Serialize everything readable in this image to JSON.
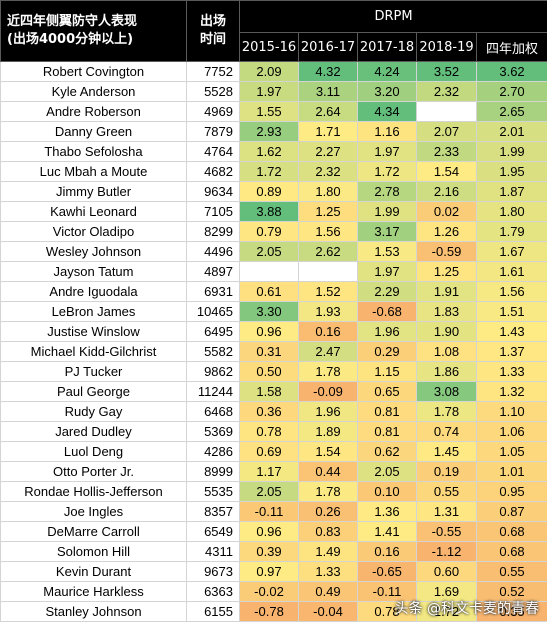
{
  "header": {
    "title_line1": "近四年侧翼防守人表现",
    "title_line2": "(出场4000分钟以上)",
    "minutes_line1": "出场",
    "minutes_line2": "时间",
    "group": "DRPM",
    "columns": [
      "2015-16",
      "2016-17",
      "2017-18",
      "2018-19",
      "四年加权"
    ]
  },
  "rows": [
    {
      "name": "Robert Covington",
      "minutes": "7752",
      "vals": [
        "2.09",
        "4.32",
        "4.24",
        "3.52",
        "3.62"
      ]
    },
    {
      "name": "Kyle Anderson",
      "minutes": "5528",
      "vals": [
        "1.97",
        "3.11",
        "3.20",
        "2.32",
        "2.70"
      ]
    },
    {
      "name": "Andre Roberson",
      "minutes": "4969",
      "vals": [
        "1.55",
        "2.64",
        "4.34",
        "",
        "2.65"
      ]
    },
    {
      "name": "Danny Green",
      "minutes": "7879",
      "vals": [
        "2.93",
        "1.71",
        "1.16",
        "2.07",
        "2.01"
      ]
    },
    {
      "name": "Thabo Sefolosha",
      "minutes": "4764",
      "vals": [
        "1.62",
        "2.27",
        "1.97",
        "2.33",
        "1.99"
      ]
    },
    {
      "name": "Luc Mbah a Moute",
      "minutes": "4682",
      "vals": [
        "1.72",
        "2.32",
        "1.72",
        "1.54",
        "1.95"
      ]
    },
    {
      "name": "Jimmy Butler",
      "minutes": "9634",
      "vals": [
        "0.89",
        "1.80",
        "2.78",
        "2.16",
        "1.87"
      ]
    },
    {
      "name": "Kawhi Leonard",
      "minutes": "7105",
      "vals": [
        "3.88",
        "1.25",
        "1.99",
        "0.02",
        "1.80"
      ]
    },
    {
      "name": "Victor Oladipo",
      "minutes": "8299",
      "vals": [
        "0.79",
        "1.56",
        "3.17",
        "1.26",
        "1.79"
      ]
    },
    {
      "name": "Wesley Johnson",
      "minutes": "4496",
      "vals": [
        "2.05",
        "2.62",
        "1.53",
        "-0.59",
        "1.67"
      ]
    },
    {
      "name": "Jayson Tatum",
      "minutes": "4897",
      "vals": [
        "",
        "",
        "1.97",
        "1.25",
        "1.61"
      ]
    },
    {
      "name": "Andre Iguodala",
      "minutes": "6931",
      "vals": [
        "0.61",
        "1.52",
        "2.29",
        "1.91",
        "1.56"
      ]
    },
    {
      "name": "LeBron James",
      "minutes": "10465",
      "vals": [
        "3.30",
        "1.93",
        "-0.68",
        "1.83",
        "1.51"
      ]
    },
    {
      "name": "Justise Winslow",
      "minutes": "6495",
      "vals": [
        "0.96",
        "0.16",
        "1.96",
        "1.90",
        "1.43"
      ]
    },
    {
      "name": "Michael Kidd-Gilchrist",
      "minutes": "5582",
      "vals": [
        "0.31",
        "2.47",
        "0.29",
        "1.08",
        "1.37"
      ]
    },
    {
      "name": "PJ Tucker",
      "minutes": "9862",
      "vals": [
        "0.50",
        "1.78",
        "1.15",
        "1.86",
        "1.33"
      ]
    },
    {
      "name": "Paul George",
      "minutes": "11244",
      "vals": [
        "1.58",
        "-0.09",
        "0.65",
        "3.08",
        "1.32"
      ]
    },
    {
      "name": "Rudy Gay",
      "minutes": "6468",
      "vals": [
        "0.36",
        "1.96",
        "0.81",
        "1.78",
        "1.10"
      ]
    },
    {
      "name": "Jared Dudley",
      "minutes": "5369",
      "vals": [
        "0.78",
        "1.89",
        "0.81",
        "0.74",
        "1.06"
      ]
    },
    {
      "name": "Luol Deng",
      "minutes": "4286",
      "vals": [
        "0.69",
        "1.54",
        "0.62",
        "1.45",
        "1.05"
      ]
    },
    {
      "name": "Otto Porter Jr.",
      "minutes": "8999",
      "vals": [
        "1.17",
        "0.44",
        "2.05",
        "0.19",
        "1.01"
      ]
    },
    {
      "name": "Rondae Hollis-Jefferson",
      "minutes": "5535",
      "vals": [
        "2.05",
        "1.78",
        "0.10",
        "0.55",
        "0.95"
      ]
    },
    {
      "name": "Joe Ingles",
      "minutes": "8357",
      "vals": [
        "-0.11",
        "0.26",
        "1.36",
        "1.31",
        "0.87"
      ]
    },
    {
      "name": "DeMarre Carroll",
      "minutes": "6549",
      "vals": [
        "0.96",
        "0.83",
        "1.41",
        "-0.55",
        "0.68"
      ]
    },
    {
      "name": "Solomon Hill",
      "minutes": "4311",
      "vals": [
        "0.39",
        "1.49",
        "0.16",
        "-1.12",
        "0.68"
      ]
    },
    {
      "name": "Kevin Durant",
      "minutes": "9673",
      "vals": [
        "0.97",
        "1.33",
        "-0.65",
        "0.60",
        "0.55"
      ]
    },
    {
      "name": "Maurice Harkless",
      "minutes": "6363",
      "vals": [
        "-0.02",
        "0.49",
        "-0.11",
        "1.69",
        "0.52"
      ]
    },
    {
      "name": "Stanley Johnson",
      "minutes": "6155",
      "vals": [
        "-0.78",
        "-0.04",
        "0.78",
        "1.72",
        "0.35"
      ]
    }
  ],
  "watermark": "头条 @科文卡麦的青春",
  "colors": {
    "header_bg": "#000000",
    "header_text": "#ffffff",
    "scale_low": "#f8b46e",
    "scale_mid": "#ffeb84",
    "scale_high": "#63be7b",
    "empty_cell": "#ffffff"
  }
}
